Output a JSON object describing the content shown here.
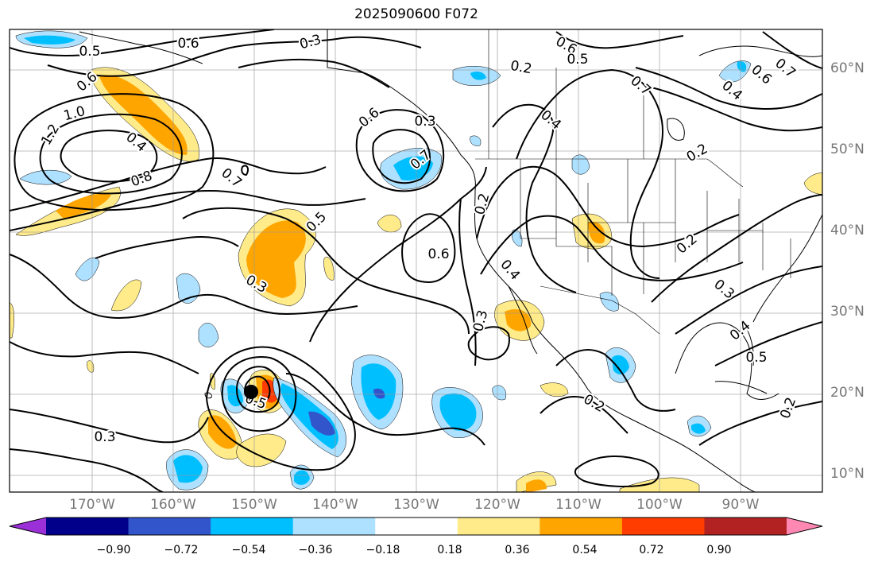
{
  "title": "2025090600 F072",
  "lat_labels": [
    "60°N",
    "50°N",
    "40°N",
    "30°N",
    "20°N",
    "10°N"
  ],
  "lon_labels": [
    "170°W",
    "160°W",
    "150°W",
    "140°W",
    "130°W",
    "120°W",
    "110°W",
    "100°W",
    "90°W"
  ],
  "colorbar": {
    "ticks": [
      "−0.90",
      "−0.72",
      "−0.54",
      "−0.36",
      "−0.18",
      "0.18",
      "0.36",
      "0.54",
      "0.72",
      "0.90"
    ],
    "colors": [
      "#9b30d9",
      "#00008b",
      "#3355cc",
      "#00bfff",
      "#aee0ff",
      "#ffffff",
      "#ffeb8a",
      "#ffa500",
      "#ff3d00",
      "#b22222",
      "#ff88b3"
    ]
  },
  "contour_labels": [
    "0.5",
    "0.6",
    "0.3",
    "0.6",
    "0.5",
    "0.7",
    "0.6",
    "0.7",
    "0.6",
    "1.0",
    "1.2",
    "0.4",
    "0.8",
    "0.7",
    "0.6",
    "0.7",
    "0.3",
    "0.2",
    "0.4",
    "0.4",
    "0.2",
    "0.5",
    "0.6",
    "0.4",
    "0.2",
    "0.3",
    "0.3",
    "0.4",
    "0.5",
    "0.2",
    "0.2",
    "0.3",
    "0.2",
    "0.5",
    "0.3"
  ],
  "marker": "storm-center"
}
